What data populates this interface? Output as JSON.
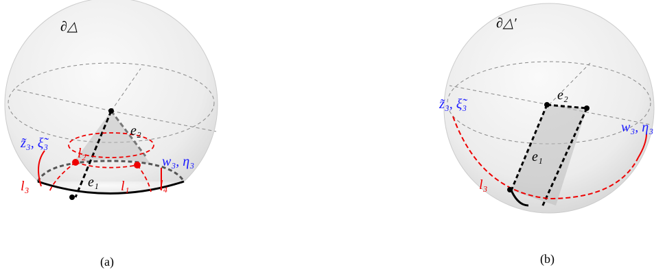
{
  "panels": [
    {
      "caption": "(a)",
      "title": "∂△",
      "labels": {
        "e2": "e₂",
        "e1": "e₁",
        "z3": "z̃₃, ξ̃₃",
        "w3": "w₃, η₃",
        "l1": "l₁",
        "l2": "l₂",
        "l3": "l₃",
        "l4": "l₄"
      }
    },
    {
      "caption": "(b)",
      "title": "∂△′",
      "labels": {
        "e2": "e₂",
        "e1": "e₁",
        "z3": "z̃₃, ξ̃₃",
        "w3": "w₃, η₃",
        "l3": "l₃"
      }
    }
  ]
}
